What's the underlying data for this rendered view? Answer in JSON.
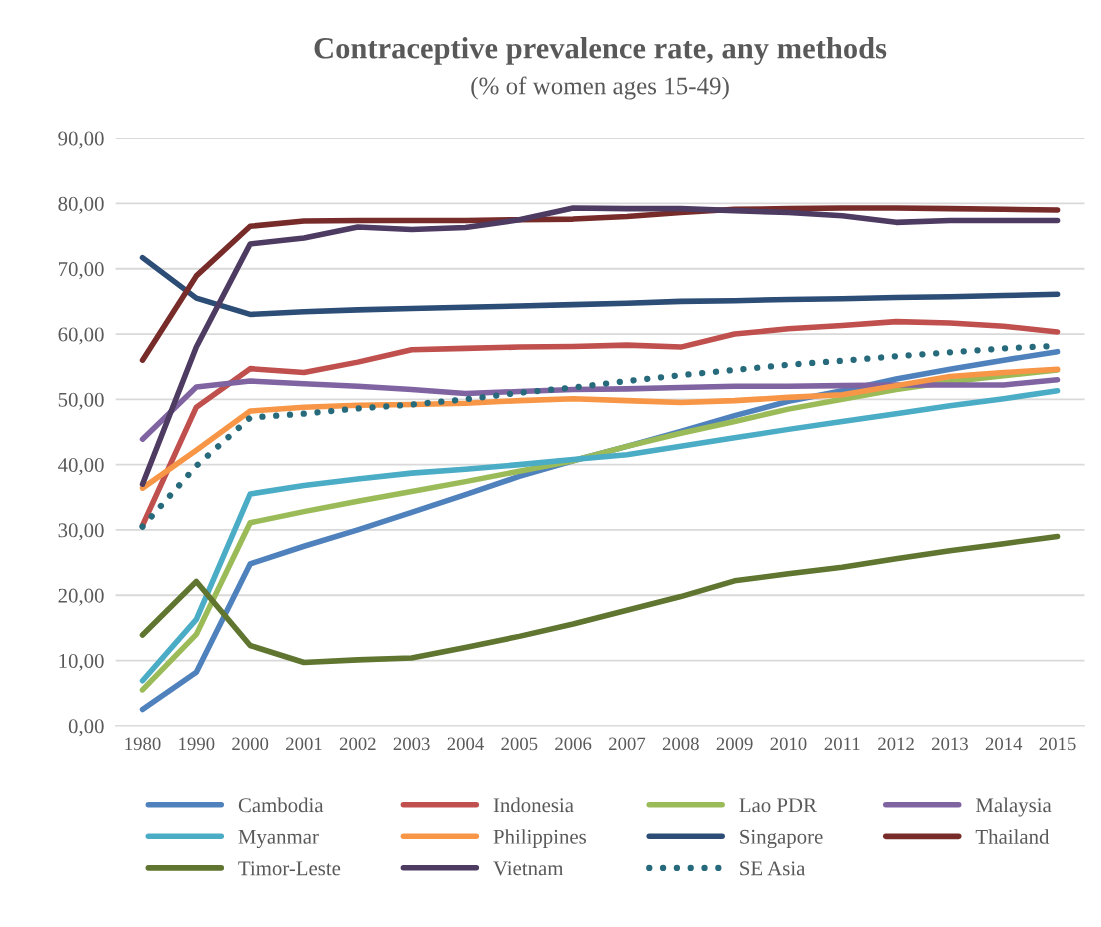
{
  "chart_data": {
    "type": "line",
    "title": "Contraceptive prevalence rate, any methods",
    "subtitle": "(% of women ages 15-49)",
    "categories": [
      "1980",
      "1990",
      "2000",
      "2001",
      "2002",
      "2003",
      "2004",
      "2005",
      "2006",
      "2007",
      "2008",
      "2009",
      "2010",
      "2011",
      "2012",
      "2013",
      "2014",
      "2015"
    ],
    "ylim": [
      0,
      90
    ],
    "yticks": [
      {
        "value": 0,
        "label": "0,00"
      },
      {
        "value": 10,
        "label": "10,00"
      },
      {
        "value": 20,
        "label": "20,00"
      },
      {
        "value": 30,
        "label": "30,00"
      },
      {
        "value": 40,
        "label": "40,00"
      },
      {
        "value": 50,
        "label": "50,00"
      },
      {
        "value": 60,
        "label": "60,00"
      },
      {
        "value": 70,
        "label": "70,00"
      },
      {
        "value": 80,
        "label": "80,00"
      },
      {
        "value": 90,
        "label": "90,00"
      }
    ],
    "grid": "y",
    "legend": "bottom",
    "series": [
      {
        "name": "Cambodia",
        "color": "#4f81bd",
        "values": [
          2.5,
          8.2,
          24.8,
          27.5,
          30,
          32.7,
          35.4,
          38.2,
          40.6,
          42.8,
          45.1,
          47.5,
          49.7,
          51.3,
          53.1,
          54.6,
          56,
          57.3
        ]
      },
      {
        "name": "Indonesia",
        "color": "#c0504d",
        "values": [
          30.7,
          48.8,
          54.7,
          54.1,
          55.7,
          57.6,
          57.8,
          58,
          58.1,
          58.3,
          58,
          60,
          60.8,
          61.3,
          61.9,
          61.7,
          61.2,
          60.3
        ]
      },
      {
        "name": "Lao PDR",
        "color": "#9bbb59",
        "values": [
          5.5,
          14,
          31.1,
          32.8,
          34.4,
          35.9,
          37.4,
          39,
          40.6,
          42.8,
          44.8,
          46.6,
          48.5,
          50,
          51.5,
          52.7,
          53.6,
          54.5
        ]
      },
      {
        "name": "Malaysia",
        "color": "#8064a2",
        "values": [
          43.9,
          51.9,
          52.8,
          52.4,
          52,
          51.5,
          50.9,
          51.2,
          51.5,
          51.6,
          51.8,
          52,
          52,
          52.1,
          52.2,
          52.2,
          52.2,
          53
        ]
      },
      {
        "name": "Myanmar",
        "color": "#4bacc6",
        "values": [
          6.9,
          16.3,
          35.5,
          36.8,
          37.8,
          38.7,
          39.3,
          40,
          40.8,
          41.5,
          42.8,
          44.1,
          45.4,
          46.6,
          47.8,
          49,
          50.1,
          51.3
        ]
      },
      {
        "name": "Philippines",
        "color": "#f79646",
        "values": [
          36.4,
          42.2,
          48.2,
          48.8,
          49.1,
          49.2,
          49.4,
          49.8,
          50.1,
          49.8,
          49.5,
          49.8,
          50.3,
          50.7,
          52.1,
          53.5,
          54.1,
          54.6
        ]
      },
      {
        "name": "Singapore",
        "color": "#2c4d75",
        "values": [
          71.7,
          65.5,
          63,
          63.4,
          63.7,
          63.9,
          64.1,
          64.3,
          64.5,
          64.7,
          65,
          65.1,
          65.3,
          65.4,
          65.6,
          65.7,
          65.9,
          66.1
        ]
      },
      {
        "name": "Thailand",
        "color": "#772c2a",
        "values": [
          56,
          68.9,
          76.5,
          77.3,
          77.4,
          77.4,
          77.4,
          77.5,
          77.6,
          78,
          78.6,
          79.1,
          79.2,
          79.3,
          79.3,
          79.2,
          79.1,
          79
        ]
      },
      {
        "name": "Timor-Leste",
        "color": "#5f7530",
        "values": [
          13.9,
          22.1,
          12.3,
          9.7,
          10.1,
          10.4,
          12,
          13.7,
          15.6,
          17.7,
          19.8,
          22.2,
          23.3,
          24.3,
          25.6,
          26.8,
          27.9,
          29
        ]
      },
      {
        "name": "Vietnam",
        "color": "#4d3b62",
        "values": [
          37,
          58,
          73.8,
          74.7,
          76.4,
          76,
          76.3,
          77.5,
          79.3,
          79.2,
          79.2,
          78.9,
          78.6,
          78.1,
          77.1,
          77.4,
          77.4,
          77.4
        ]
      },
      {
        "name": "SE Asia",
        "color": "#276a7c",
        "line_style": "dotted",
        "values": [
          30.5,
          39.8,
          47.2,
          47.8,
          48.6,
          49.2,
          50,
          51,
          51.8,
          52.8,
          53.7,
          54.5,
          55.3,
          55.9,
          56.6,
          57.2,
          57.8,
          58.2
        ]
      }
    ]
  }
}
